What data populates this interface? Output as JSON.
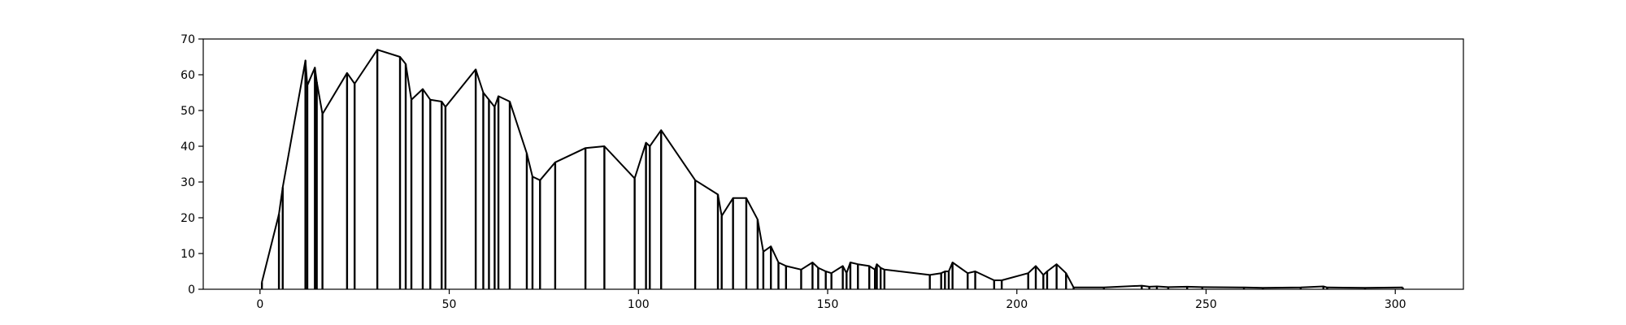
{
  "chart_data": {
    "type": "line",
    "title": "",
    "xlabel": "",
    "ylabel": "",
    "xlim": [
      -15,
      318
    ],
    "ylim": [
      0,
      70
    ],
    "x_ticks": [
      0,
      50,
      100,
      150,
      200,
      250,
      300
    ],
    "y_ticks": [
      0,
      10,
      20,
      30,
      40,
      50,
      60,
      70
    ],
    "grid": false,
    "legend": "none",
    "color": "#000000",
    "style": "line with vertical drop lines at each data point",
    "points": [
      [
        0.5,
        2
      ],
      [
        5,
        21
      ],
      [
        6,
        28.5
      ],
      [
        12,
        64
      ],
      [
        12.5,
        57
      ],
      [
        14.5,
        62
      ],
      [
        15,
        58
      ],
      [
        16.5,
        49
      ],
      [
        23,
        60.5
      ],
      [
        25,
        57.5
      ],
      [
        31,
        67
      ],
      [
        37,
        65
      ],
      [
        38.5,
        63
      ],
      [
        40,
        53
      ],
      [
        43,
        56
      ],
      [
        45,
        53
      ],
      [
        48,
        52.5
      ],
      [
        49,
        51
      ],
      [
        57,
        61.5
      ],
      [
        59,
        55
      ],
      [
        60.5,
        53
      ],
      [
        62,
        51
      ],
      [
        63,
        54
      ],
      [
        66,
        52.5
      ],
      [
        70.5,
        38
      ],
      [
        72,
        31.5
      ],
      [
        74,
        30.5
      ],
      [
        78,
        35.5
      ],
      [
        86,
        39.5
      ],
      [
        91,
        40
      ],
      [
        99,
        31
      ],
      [
        102,
        41
      ],
      [
        103,
        40
      ],
      [
        106,
        44.5
      ],
      [
        115,
        30.5
      ],
      [
        121,
        26.5
      ],
      [
        122,
        20.5
      ],
      [
        125,
        25.5
      ],
      [
        128.5,
        25.5
      ],
      [
        131.5,
        19.5
      ],
      [
        133,
        10.5
      ],
      [
        135,
        12
      ],
      [
        137,
        7.5
      ],
      [
        139,
        6.5
      ],
      [
        143,
        5.5
      ],
      [
        146,
        7.5
      ],
      [
        147.5,
        6
      ],
      [
        149.5,
        5
      ],
      [
        151,
        4.5
      ],
      [
        154,
        6.5
      ],
      [
        155,
        4.5
      ],
      [
        156,
        7.5
      ],
      [
        158,
        7
      ],
      [
        161,
        6.5
      ],
      [
        162.5,
        5.5
      ],
      [
        163,
        7
      ],
      [
        164,
        6
      ],
      [
        165,
        5.5
      ],
      [
        177,
        4
      ],
      [
        180,
        4.5
      ],
      [
        181,
        5
      ],
      [
        182,
        5
      ],
      [
        183,
        7.5
      ],
      [
        187,
        4.5
      ],
      [
        189,
        5
      ],
      [
        194,
        2.5
      ],
      [
        196,
        2.5
      ],
      [
        203,
        4.5
      ],
      [
        205,
        6.5
      ],
      [
        207,
        4
      ],
      [
        208,
        5
      ],
      [
        210.5,
        7
      ],
      [
        213,
        4.5
      ],
      [
        215,
        0.5
      ],
      [
        223,
        0.5
      ],
      [
        233,
        1
      ],
      [
        235,
        0.7
      ],
      [
        237,
        0.8
      ],
      [
        240,
        0.6
      ],
      [
        245,
        0.7
      ],
      [
        249,
        0.6
      ],
      [
        260,
        0.5
      ],
      [
        265,
        0.4
      ],
      [
        275,
        0.5
      ],
      [
        281,
        0.8
      ],
      [
        282,
        0.5
      ],
      [
        292,
        0.4
      ],
      [
        302,
        0.5
      ]
    ]
  }
}
